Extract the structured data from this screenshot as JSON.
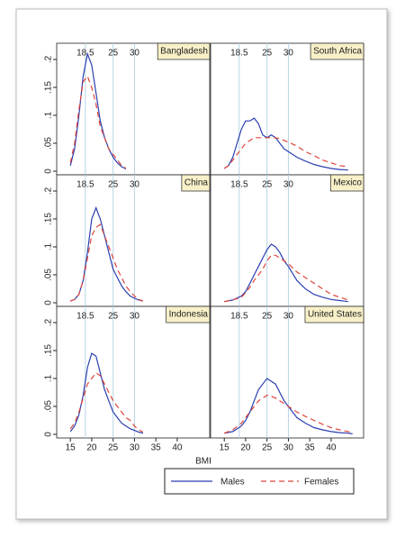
{
  "chart_data": [
    {
      "type": "line",
      "title": "Bangladesh",
      "xlim": [
        11.8,
        47.6
      ],
      "ylim": [
        -0.0065,
        0.229
      ],
      "reference_lines": [
        18.5,
        25,
        30
      ],
      "yticks": [
        {
          "value": 0,
          "label": "0"
        },
        {
          "value": 0.05,
          "label": ".05"
        },
        {
          "value": 0.1,
          "label": ".1"
        },
        {
          "value": 0.15,
          "label": ".15"
        },
        {
          "value": 0.2,
          "label": ".2"
        }
      ],
      "x": [
        15,
        16,
        17,
        18,
        19,
        20,
        21,
        22,
        23,
        24,
        25,
        26,
        27,
        28
      ],
      "series": [
        {
          "name": "Males",
          "color": "#2b3fb0",
          "values": [
            0.01,
            0.04,
            0.1,
            0.17,
            0.21,
            0.19,
            0.14,
            0.09,
            0.06,
            0.04,
            0.025,
            0.015,
            0.008,
            0.004
          ]
        },
        {
          "name": "Females",
          "color": "#e0443a",
          "values": [
            0.015,
            0.05,
            0.11,
            0.16,
            0.17,
            0.15,
            0.12,
            0.08,
            0.06,
            0.04,
            0.03,
            0.02,
            0.01,
            0.005
          ]
        }
      ]
    },
    {
      "type": "line",
      "title": "South Africa",
      "xlim": [
        11.8,
        47.6
      ],
      "ylim": [
        -0.0065,
        0.229
      ],
      "reference_lines": [
        18.5,
        25,
        30
      ],
      "x": [
        15,
        16,
        17,
        18,
        19,
        20,
        21,
        22,
        23,
        24,
        25,
        26,
        27,
        28,
        29,
        30,
        32,
        34,
        36,
        38,
        40,
        42,
        44
      ],
      "series": [
        {
          "name": "Males",
          "color": "#2b3fb0",
          "values": [
            0.005,
            0.01,
            0.025,
            0.05,
            0.075,
            0.09,
            0.09,
            0.095,
            0.085,
            0.065,
            0.06,
            0.065,
            0.06,
            0.05,
            0.04,
            0.035,
            0.025,
            0.018,
            0.012,
            0.008,
            0.005,
            0.003,
            0.002
          ]
        },
        {
          "name": "Females",
          "color": "#e0443a",
          "values": [
            0.005,
            0.01,
            0.02,
            0.03,
            0.04,
            0.05,
            0.055,
            0.06,
            0.06,
            0.06,
            0.06,
            0.06,
            0.06,
            0.058,
            0.055,
            0.052,
            0.045,
            0.035,
            0.028,
            0.02,
            0.015,
            0.01,
            0.008
          ]
        }
      ]
    },
    {
      "type": "line",
      "title": "China",
      "xlim": [
        11.8,
        47.6
      ],
      "ylim": [
        -0.0065,
        0.229
      ],
      "reference_lines": [
        18.5,
        25,
        30
      ],
      "yticks": [
        {
          "value": 0,
          "label": "0"
        },
        {
          "value": 0.05,
          "label": ".05"
        },
        {
          "value": 0.1,
          "label": ".1"
        },
        {
          "value": 0.15,
          "label": ".15"
        },
        {
          "value": 0.2,
          "label": ".2"
        }
      ],
      "x": [
        15,
        16,
        17,
        18,
        19,
        20,
        21,
        22,
        23,
        24,
        25,
        26,
        27,
        28,
        29,
        30,
        31,
        32
      ],
      "series": [
        {
          "name": "Males",
          "color": "#2b3fb0",
          "values": [
            0.003,
            0.006,
            0.015,
            0.04,
            0.09,
            0.15,
            0.17,
            0.15,
            0.12,
            0.09,
            0.06,
            0.045,
            0.03,
            0.02,
            0.012,
            0.008,
            0.005,
            0.003
          ]
        },
        {
          "name": "Females",
          "color": "#e0443a",
          "values": [
            0.003,
            0.006,
            0.015,
            0.04,
            0.08,
            0.12,
            0.135,
            0.14,
            0.12,
            0.1,
            0.08,
            0.06,
            0.045,
            0.03,
            0.02,
            0.012,
            0.006,
            0.003
          ]
        }
      ]
    },
    {
      "type": "line",
      "title": "Mexico",
      "xlim": [
        11.8,
        47.6
      ],
      "ylim": [
        -0.0065,
        0.229
      ],
      "reference_lines": [
        18.5,
        25,
        30
      ],
      "x": [
        15,
        17,
        19,
        20,
        21,
        22,
        23,
        24,
        25,
        26,
        27,
        28,
        29,
        30,
        32,
        34,
        36,
        38,
        40,
        42,
        44
      ],
      "series": [
        {
          "name": "Males",
          "color": "#2b3fb0",
          "values": [
            0.002,
            0.005,
            0.012,
            0.02,
            0.035,
            0.05,
            0.065,
            0.08,
            0.095,
            0.105,
            0.1,
            0.09,
            0.075,
            0.065,
            0.04,
            0.025,
            0.015,
            0.01,
            0.006,
            0.004,
            0.002
          ]
        },
        {
          "name": "Females",
          "color": "#e0443a",
          "values": [
            0.002,
            0.005,
            0.01,
            0.018,
            0.028,
            0.04,
            0.05,
            0.06,
            0.075,
            0.085,
            0.085,
            0.08,
            0.075,
            0.07,
            0.055,
            0.045,
            0.035,
            0.025,
            0.015,
            0.01,
            0.005
          ]
        }
      ]
    },
    {
      "type": "line",
      "title": "Indonesia",
      "xlim": [
        11.8,
        47.6
      ],
      "ylim": [
        -0.0065,
        0.229
      ],
      "reference_lines": [
        18.5,
        25,
        30
      ],
      "yticks": [
        {
          "value": 0,
          "label": "0"
        },
        {
          "value": 0.05,
          "label": ".05"
        },
        {
          "value": 0.1,
          "label": ".1"
        },
        {
          "value": 0.15,
          "label": ".15"
        },
        {
          "value": 0.2,
          "label": ".2"
        }
      ],
      "xticks": [
        15,
        20,
        25,
        30,
        35,
        40
      ],
      "xlabel": "BMI",
      "x": [
        15,
        16,
        17,
        18,
        19,
        20,
        21,
        22,
        23,
        24,
        25,
        26,
        27,
        28,
        29,
        30,
        31,
        32
      ],
      "series": [
        {
          "name": "Males",
          "color": "#2b3fb0",
          "values": [
            0.005,
            0.015,
            0.035,
            0.07,
            0.12,
            0.145,
            0.14,
            0.11,
            0.08,
            0.06,
            0.04,
            0.03,
            0.02,
            0.015,
            0.01,
            0.007,
            0.004,
            0.002
          ]
        },
        {
          "name": "Females",
          "color": "#e0443a",
          "values": [
            0.01,
            0.02,
            0.04,
            0.065,
            0.09,
            0.1,
            0.11,
            0.105,
            0.09,
            0.075,
            0.06,
            0.05,
            0.04,
            0.03,
            0.025,
            0.015,
            0.008,
            0.004
          ]
        }
      ]
    },
    {
      "type": "line",
      "title": "United States",
      "xlim": [
        11.8,
        47.6
      ],
      "ylim": [
        -0.0065,
        0.229
      ],
      "reference_lines": [
        18.5,
        25,
        30
      ],
      "xticks": [
        15,
        20,
        25,
        30,
        35,
        40
      ],
      "x": [
        15,
        17,
        19,
        20,
        21,
        22,
        23,
        24,
        25,
        26,
        27,
        28,
        29,
        30,
        32,
        34,
        36,
        38,
        40,
        42,
        44,
        45
      ],
      "series": [
        {
          "name": "Males",
          "color": "#2b3fb0",
          "values": [
            0.002,
            0.005,
            0.015,
            0.025,
            0.04,
            0.06,
            0.08,
            0.09,
            0.1,
            0.095,
            0.09,
            0.075,
            0.06,
            0.05,
            0.03,
            0.02,
            0.012,
            0.008,
            0.005,
            0.003,
            0.002,
            0.001
          ]
        },
        {
          "name": "Females",
          "color": "#e0443a",
          "values": [
            0.002,
            0.008,
            0.02,
            0.03,
            0.04,
            0.05,
            0.06,
            0.065,
            0.07,
            0.068,
            0.065,
            0.06,
            0.055,
            0.05,
            0.04,
            0.032,
            0.025,
            0.018,
            0.012,
            0.008,
            0.005,
            0.003
          ]
        }
      ]
    }
  ]
}
